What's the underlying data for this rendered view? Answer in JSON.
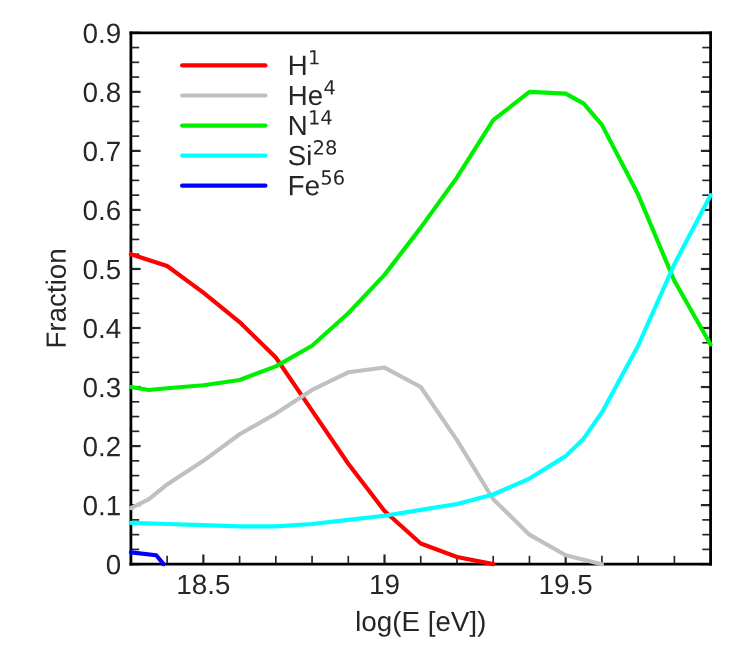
{
  "chart_data": {
    "type": "line",
    "xlabel": "log(E [eV])",
    "ylabel": "Fraction",
    "xlim": [
      18.3,
      19.9
    ],
    "ylim": [
      0,
      0.9
    ],
    "xticks": [
      18.5,
      19,
      19.5
    ],
    "yticks": [
      0,
      0.1,
      0.2,
      0.3,
      0.4,
      0.5,
      0.6,
      0.7,
      0.8,
      0.9
    ],
    "grid": false,
    "legend": "top left",
    "marker": "none",
    "line_style": "solid",
    "series": [
      {
        "name": "H$^{1}$",
        "color": "#ff0000",
        "x": [
          18.3,
          18.4,
          18.5,
          18.6,
          18.7,
          18.8,
          18.9,
          19.0,
          19.1,
          19.2,
          19.3
        ],
        "values": [
          0.525,
          0.505,
          0.46,
          0.41,
          0.35,
          0.26,
          0.17,
          0.09,
          0.035,
          0.012,
          0.0
        ]
      },
      {
        "name": "He$^{4}$",
        "color": "#c0c0c0",
        "x": [
          18.3,
          18.35,
          18.4,
          18.5,
          18.6,
          18.7,
          18.8,
          18.9,
          19.0,
          19.1,
          19.2,
          19.3,
          19.4,
          19.5,
          19.6
        ],
        "values": [
          0.095,
          0.11,
          0.135,
          0.175,
          0.22,
          0.255,
          0.295,
          0.325,
          0.333,
          0.3,
          0.21,
          0.11,
          0.05,
          0.015,
          0.0
        ]
      },
      {
        "name": "N$^{14}$",
        "color": "#00ee00",
        "x": [
          18.3,
          18.35,
          18.4,
          18.5,
          18.6,
          18.7,
          18.8,
          18.9,
          19.0,
          19.1,
          19.2,
          19.3,
          19.4,
          19.5,
          19.55,
          19.6,
          19.7,
          19.8,
          19.9
        ],
        "values": [
          0.3,
          0.295,
          0.298,
          0.303,
          0.312,
          0.335,
          0.37,
          0.425,
          0.49,
          0.57,
          0.655,
          0.752,
          0.8,
          0.797,
          0.78,
          0.744,
          0.626,
          0.48,
          0.372
        ]
      },
      {
        "name": "Si$^{28}$",
        "color": "#00ffff",
        "x": [
          18.3,
          18.4,
          18.5,
          18.6,
          18.7,
          18.8,
          18.9,
          19.0,
          19.1,
          19.2,
          19.3,
          19.4,
          19.5,
          19.55,
          19.6,
          19.7,
          19.8,
          19.9
        ],
        "values": [
          0.07,
          0.068,
          0.066,
          0.064,
          0.064,
          0.068,
          0.075,
          0.082,
          0.092,
          0.102,
          0.118,
          0.145,
          0.183,
          0.213,
          0.257,
          0.37,
          0.508,
          0.625
        ]
      },
      {
        "name": "Fe$^{56}$",
        "color": "#0000ff",
        "x": [
          18.3,
          18.37,
          18.39
        ],
        "values": [
          0.02,
          0.015,
          0.0
        ]
      }
    ]
  }
}
